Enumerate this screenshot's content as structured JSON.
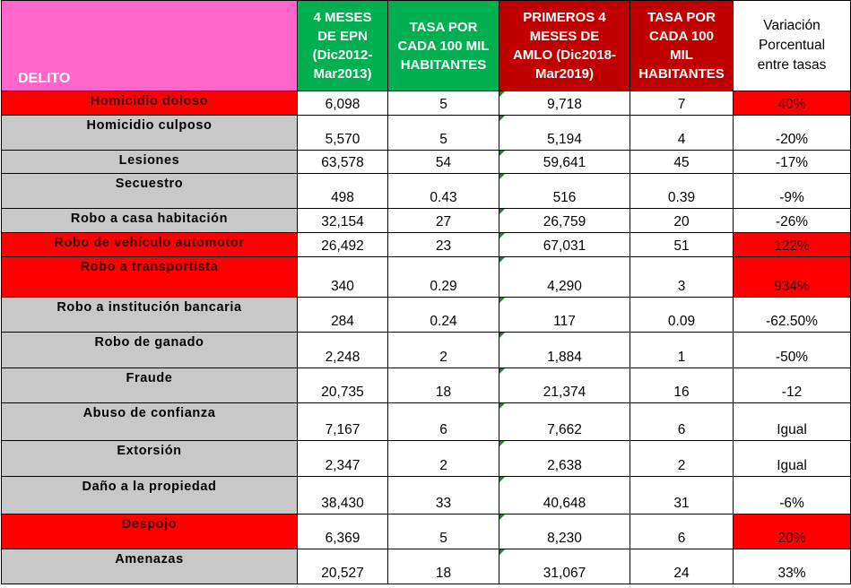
{
  "headers": {
    "delito": "DELITO",
    "epn": [
      "4 MESES",
      "DE EPN",
      "(Dic2012-",
      "Mar2013)"
    ],
    "tasa_epn": [
      "TASA POR",
      "CADA 100 MIL",
      "HABITANTES"
    ],
    "amlo": [
      "PRIMEROS 4",
      "MESES DE",
      "AMLO (Dic2018-",
      "Mar2019)"
    ],
    "tasa_amlo": [
      "TASA POR",
      "CADA 100",
      "MIL",
      "HABITANTES"
    ],
    "variacion": [
      "Variación",
      "Porcentual",
      "entre tasas"
    ]
  },
  "colors": {
    "header_pink": "#ff66cc",
    "header_green": "#00b050",
    "header_red": "#c00000",
    "highlight_red": "#ff0000",
    "row_gray": "#c8c8c8"
  },
  "rows": [
    {
      "delito": "Homicidio doloso",
      "epn": "6,098",
      "tasa_epn": "5",
      "amlo": "9,718",
      "tasa_amlo": "7",
      "variacion": "40%"
    },
    {
      "delito": "Homicidio culposo",
      "epn": "5,570",
      "tasa_epn": "5",
      "amlo": "5,194",
      "tasa_amlo": "4",
      "variacion": "-20%"
    },
    {
      "delito": "Lesiones",
      "epn": "63,578",
      "tasa_epn": "54",
      "amlo": "59,641",
      "tasa_amlo": "45",
      "variacion": "-17%"
    },
    {
      "delito": "Secuestro",
      "epn": "498",
      "tasa_epn": "0.43",
      "amlo": "516",
      "tasa_amlo": "0.39",
      "variacion": "-9%"
    },
    {
      "delito": "Robo a casa habitación",
      "epn": "32,154",
      "tasa_epn": "27",
      "amlo": "26,759",
      "tasa_amlo": "20",
      "variacion": "-26%"
    },
    {
      "delito": "Robo de vehículo automotor",
      "epn": "26,492",
      "tasa_epn": "23",
      "amlo": "67,031",
      "tasa_amlo": "51",
      "variacion": "122%"
    },
    {
      "delito": "Robo a transportista",
      "epn": "340",
      "tasa_epn": "0.29",
      "amlo": "4,290",
      "tasa_amlo": "3",
      "variacion": "934%"
    },
    {
      "delito": "Robo a institución bancaria",
      "epn": "284",
      "tasa_epn": "0.24",
      "amlo": "117",
      "tasa_amlo": "0.09",
      "variacion": "-62.50%"
    },
    {
      "delito": "Robo de ganado",
      "epn": "2,248",
      "tasa_epn": "2",
      "amlo": "1,884",
      "tasa_amlo": "1",
      "variacion": "-50%"
    },
    {
      "delito": "Fraude",
      "epn": "20,735",
      "tasa_epn": "18",
      "amlo": "21,374",
      "tasa_amlo": "16",
      "variacion": "-12"
    },
    {
      "delito": "Abuso de confianza",
      "epn": "7,167",
      "tasa_epn": "6",
      "amlo": "7,662",
      "tasa_amlo": "6",
      "variacion": "Igual"
    },
    {
      "delito": "Extorsión",
      "epn": "2,347",
      "tasa_epn": "2",
      "amlo": "2,638",
      "tasa_amlo": "2",
      "variacion": "Igual"
    },
    {
      "delito": "Daño a la propiedad",
      "epn": "38,430",
      "tasa_epn": "33",
      "amlo": "40,648",
      "tasa_amlo": "31",
      "variacion": "-6%"
    },
    {
      "delito": "Despojo",
      "epn": "6,369",
      "tasa_epn": "5",
      "amlo": "8,230",
      "tasa_amlo": "6",
      "variacion": "20%"
    },
    {
      "delito": "Amenazas",
      "epn": "20,527",
      "tasa_epn": "18",
      "amlo": "31,067",
      "tasa_amlo": "24",
      "variacion": "33%"
    }
  ]
}
